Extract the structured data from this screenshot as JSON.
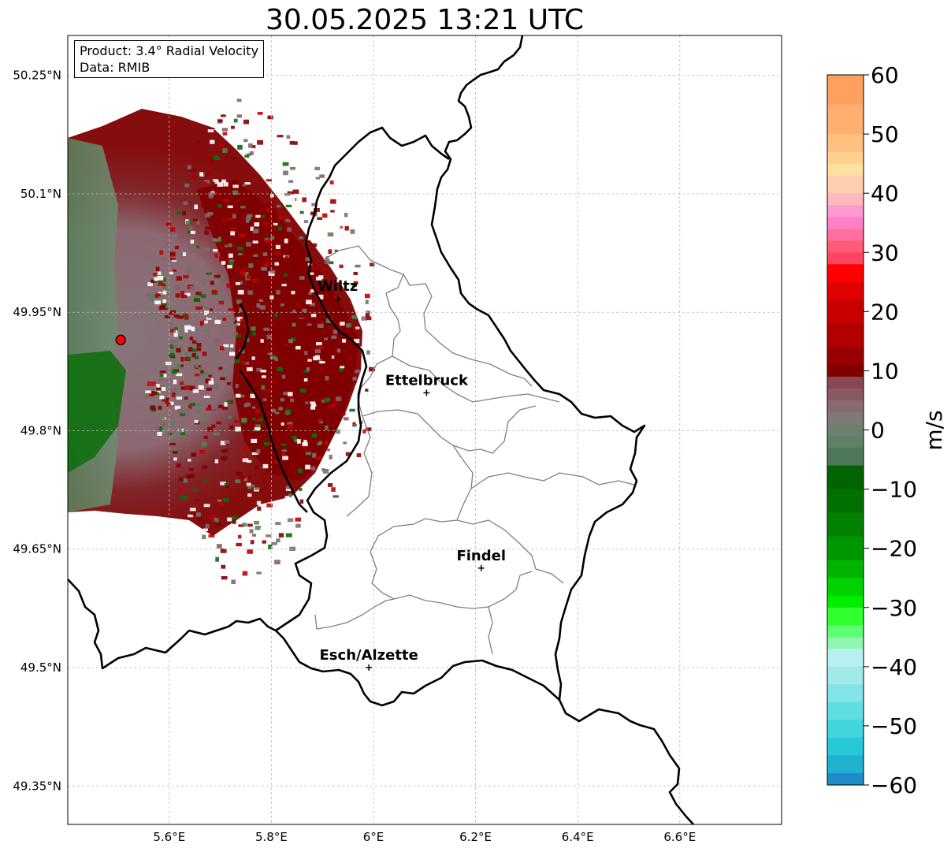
{
  "title": "30.05.2025 13:21 UTC",
  "info": {
    "product": "Product: 3.4° Radial Velocity",
    "data": "Data: RMIB"
  },
  "map": {
    "lon_range": [
      5.4,
      6.8
    ],
    "lat_range": [
      49.3,
      50.3
    ],
    "lon_ticks": [
      "5.6°E",
      "5.8°E",
      "6°E",
      "6.2°E",
      "6.4°E",
      "6.6°E"
    ],
    "lat_ticks": [
      "50.25°N",
      "50.1°N",
      "49.95°N",
      "49.8°N",
      "49.65°N",
      "49.5°N",
      "49.35°N"
    ],
    "grid": true,
    "radar_site": {
      "lon": 5.505,
      "lat": 49.915,
      "color": "#ff0000"
    }
  },
  "cities": [
    {
      "name": "Wiltz",
      "lon": 5.93,
      "lat": 49.967
    },
    {
      "name": "Ettelbruck",
      "lon": 6.104,
      "lat": 49.848
    },
    {
      "name": "Findel",
      "lon": 6.211,
      "lat": 49.626
    },
    {
      "name": "Esch/Alzette",
      "lon": 5.991,
      "lat": 49.5
    }
  ],
  "colorbar": {
    "label": "m/s",
    "ticks": [
      "60",
      "50",
      "40",
      "30",
      "20",
      "10",
      "0",
      "−10",
      "−20",
      "−30",
      "−40",
      "−50",
      "−60"
    ],
    "min": -60,
    "max": 60
  }
}
